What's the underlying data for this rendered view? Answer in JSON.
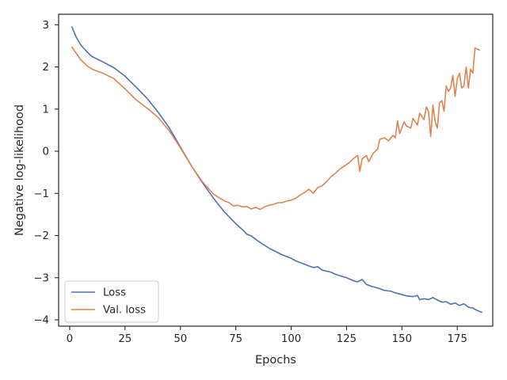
{
  "chart_data": {
    "type": "line",
    "title": "",
    "xlabel": "Epochs",
    "ylabel": "Negative log-likelihood",
    "xlim": [
      -5,
      191
    ],
    "ylim": [
      -4.15,
      3.25
    ],
    "x_ticks": [
      0,
      25,
      50,
      75,
      100,
      125,
      150,
      175
    ],
    "x_tick_labels": [
      "0",
      "25",
      "50",
      "75",
      "100",
      "125",
      "150",
      "175"
    ],
    "y_ticks": [
      3,
      2,
      1,
      0,
      -1,
      -2,
      -3,
      -4
    ],
    "y_tick_labels": [
      "3",
      "2",
      "1",
      "0",
      "−1",
      "−2",
      "−3",
      "−4"
    ],
    "grid": false,
    "legend": {
      "position": "lower-left"
    },
    "series": [
      {
        "name": "Loss",
        "color": "#4c72b0",
        "points": [
          [
            1,
            2.95
          ],
          [
            3,
            2.7
          ],
          [
            5,
            2.52
          ],
          [
            8,
            2.35
          ],
          [
            10,
            2.25
          ],
          [
            15,
            2.12
          ],
          [
            20,
            1.98
          ],
          [
            25,
            1.78
          ],
          [
            30,
            1.52
          ],
          [
            35,
            1.25
          ],
          [
            40,
            0.92
          ],
          [
            45,
            0.55
          ],
          [
            50,
            0.1
          ],
          [
            55,
            -0.35
          ],
          [
            60,
            -0.75
          ],
          [
            65,
            -1.12
          ],
          [
            70,
            -1.45
          ],
          [
            75,
            -1.72
          ],
          [
            78,
            -1.86
          ],
          [
            80,
            -1.97
          ],
          [
            82,
            -2.01
          ],
          [
            85,
            -2.13
          ],
          [
            88,
            -2.23
          ],
          [
            90,
            -2.3
          ],
          [
            93,
            -2.38
          ],
          [
            96,
            -2.46
          ],
          [
            100,
            -2.54
          ],
          [
            102,
            -2.6
          ],
          [
            105,
            -2.66
          ],
          [
            108,
            -2.72
          ],
          [
            110,
            -2.76
          ],
          [
            112,
            -2.74
          ],
          [
            114,
            -2.82
          ],
          [
            118,
            -2.87
          ],
          [
            120,
            -2.92
          ],
          [
            123,
            -2.97
          ],
          [
            125,
            -3.0
          ],
          [
            128,
            -3.07
          ],
          [
            130,
            -3.1
          ],
          [
            132,
            -3.04
          ],
          [
            134,
            -3.16
          ],
          [
            136,
            -3.2
          ],
          [
            138,
            -3.23
          ],
          [
            140,
            -3.26
          ],
          [
            142,
            -3.3
          ],
          [
            145,
            -3.32
          ],
          [
            147,
            -3.36
          ],
          [
            150,
            -3.4
          ],
          [
            152,
            -3.43
          ],
          [
            155,
            -3.45
          ],
          [
            157,
            -3.42
          ],
          [
            158,
            -3.52
          ],
          [
            160,
            -3.5
          ],
          [
            162,
            -3.52
          ],
          [
            164,
            -3.47
          ],
          [
            166,
            -3.53
          ],
          [
            168,
            -3.58
          ],
          [
            170,
            -3.57
          ],
          [
            172,
            -3.63
          ],
          [
            174,
            -3.6
          ],
          [
            176,
            -3.66
          ],
          [
            178,
            -3.62
          ],
          [
            180,
            -3.7
          ],
          [
            182,
            -3.72
          ],
          [
            184,
            -3.78
          ],
          [
            186,
            -3.82
          ]
        ]
      },
      {
        "name": "Val. loss",
        "color": "#dd8452",
        "points": [
          [
            1,
            2.47
          ],
          [
            3,
            2.32
          ],
          [
            5,
            2.17
          ],
          [
            8,
            2.02
          ],
          [
            10,
            1.95
          ],
          [
            15,
            1.85
          ],
          [
            20,
            1.72
          ],
          [
            25,
            1.48
          ],
          [
            30,
            1.22
          ],
          [
            35,
            1.02
          ],
          [
            40,
            0.8
          ],
          [
            45,
            0.48
          ],
          [
            50,
            0.08
          ],
          [
            55,
            -0.35
          ],
          [
            60,
            -0.73
          ],
          [
            65,
            -1.02
          ],
          [
            68,
            -1.12
          ],
          [
            70,
            -1.18
          ],
          [
            72,
            -1.22
          ],
          [
            74,
            -1.3
          ],
          [
            76,
            -1.28
          ],
          [
            78,
            -1.32
          ],
          [
            80,
            -1.31
          ],
          [
            82,
            -1.37
          ],
          [
            84,
            -1.33
          ],
          [
            86,
            -1.38
          ],
          [
            88,
            -1.32
          ],
          [
            90,
            -1.28
          ],
          [
            92,
            -1.26
          ],
          [
            94,
            -1.22
          ],
          [
            96,
            -1.22
          ],
          [
            98,
            -1.18
          ],
          [
            100,
            -1.16
          ],
          [
            102,
            -1.12
          ],
          [
            104,
            -1.04
          ],
          [
            106,
            -0.98
          ],
          [
            108,
            -0.9
          ],
          [
            110,
            -1.0
          ],
          [
            112,
            -0.86
          ],
          [
            114,
            -0.82
          ],
          [
            116,
            -0.72
          ],
          [
            118,
            -0.6
          ],
          [
            120,
            -0.52
          ],
          [
            122,
            -0.42
          ],
          [
            124,
            -0.35
          ],
          [
            126,
            -0.28
          ],
          [
            128,
            -0.18
          ],
          [
            130,
            -0.1
          ],
          [
            131,
            -0.48
          ],
          [
            132,
            -0.18
          ],
          [
            134,
            -0.1
          ],
          [
            135,
            -0.25
          ],
          [
            137,
            -0.05
          ],
          [
            139,
            0.05
          ],
          [
            140,
            0.28
          ],
          [
            142,
            0.32
          ],
          [
            144,
            0.25
          ],
          [
            146,
            0.38
          ],
          [
            147,
            0.32
          ],
          [
            148,
            0.72
          ],
          [
            149,
            0.42
          ],
          [
            151,
            0.7
          ],
          [
            152,
            0.6
          ],
          [
            154,
            0.55
          ],
          [
            155,
            0.78
          ],
          [
            157,
            0.62
          ],
          [
            158,
            0.9
          ],
          [
            160,
            0.75
          ],
          [
            161,
            1.05
          ],
          [
            162,
            0.95
          ],
          [
            163,
            0.35
          ],
          [
            164,
            1.1
          ],
          [
            165,
            0.7
          ],
          [
            166,
            0.55
          ],
          [
            167,
            1.15
          ],
          [
            168,
            1.2
          ],
          [
            169,
            0.95
          ],
          [
            170,
            1.55
          ],
          [
            171,
            1.42
          ],
          [
            172,
            1.5
          ],
          [
            173,
            1.8
          ],
          [
            174,
            1.3
          ],
          [
            175,
            1.72
          ],
          [
            176,
            1.85
          ],
          [
            177,
            1.5
          ],
          [
            178,
            1.55
          ],
          [
            179,
            2.0
          ],
          [
            180,
            1.5
          ],
          [
            181,
            1.95
          ],
          [
            182,
            1.85
          ],
          [
            183,
            2.45
          ],
          [
            185,
            2.4
          ]
        ]
      }
    ]
  }
}
